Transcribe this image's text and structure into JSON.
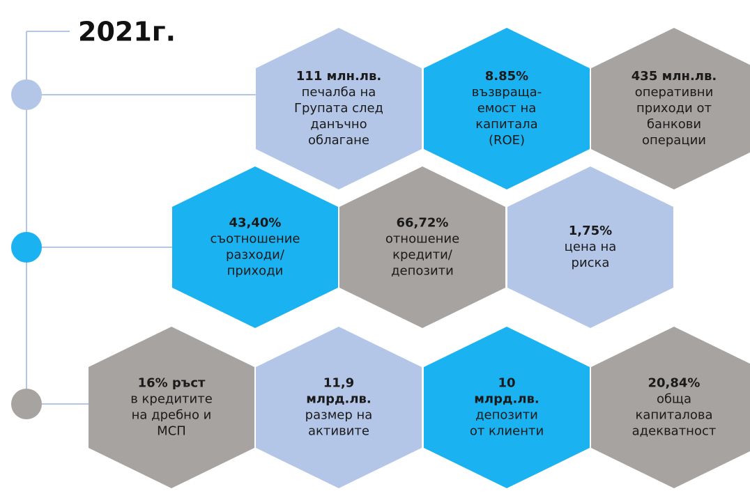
{
  "title": "2021г.",
  "timeline": [
    {
      "color": "#b4c6e7"
    },
    {
      "color": "#1ab2f0"
    },
    {
      "color": "#a6a3a1"
    }
  ],
  "hexagons": [
    {
      "color": "#b4c6e7",
      "bold": [
        "111 млн.лв."
      ],
      "lines": [
        "печалба на",
        "Групата след",
        "данъчно",
        "облагане"
      ]
    },
    {
      "color": "#1ab2f0",
      "bold": [
        "8.85%"
      ],
      "lines": [
        "възвраща-",
        "емост на",
        "капитала",
        "(ROE)"
      ]
    },
    {
      "color": "#a6a3a1",
      "bold": [
        "435 млн.лв."
      ],
      "lines": [
        "оперативни",
        "приходи от",
        "банкови",
        "операции"
      ]
    },
    {
      "color": "#1ab2f0",
      "bold": [
        "43,40%"
      ],
      "lines": [
        "съотношение",
        "разходи/",
        "приходи"
      ]
    },
    {
      "color": "#a6a3a1",
      "bold": [
        "66,72%"
      ],
      "lines": [
        "отношение",
        "кредити/",
        "депозити"
      ]
    },
    {
      "color": "#b4c6e7",
      "bold": [
        "1,75%"
      ],
      "lines": [
        "цена на",
        "риска"
      ]
    },
    {
      "color": "#a6a3a1",
      "bold": [
        "16% ръст"
      ],
      "lines": [
        "в кредитите",
        "на дребно и",
        "МСП"
      ]
    },
    {
      "color": "#b4c6e7",
      "bold": [
        "11,9",
        "млрд.лв."
      ],
      "lines": [
        "размер на",
        "активите"
      ]
    },
    {
      "color": "#1ab2f0",
      "bold": [
        "10",
        "млрд.лв."
      ],
      "lines": [
        "депозити",
        "от клиенти"
      ]
    },
    {
      "color": "#a6a3a1",
      "bold": [
        "20,84%"
      ],
      "lines": [
        "обща",
        "капиталова",
        "адекватност"
      ]
    }
  ]
}
